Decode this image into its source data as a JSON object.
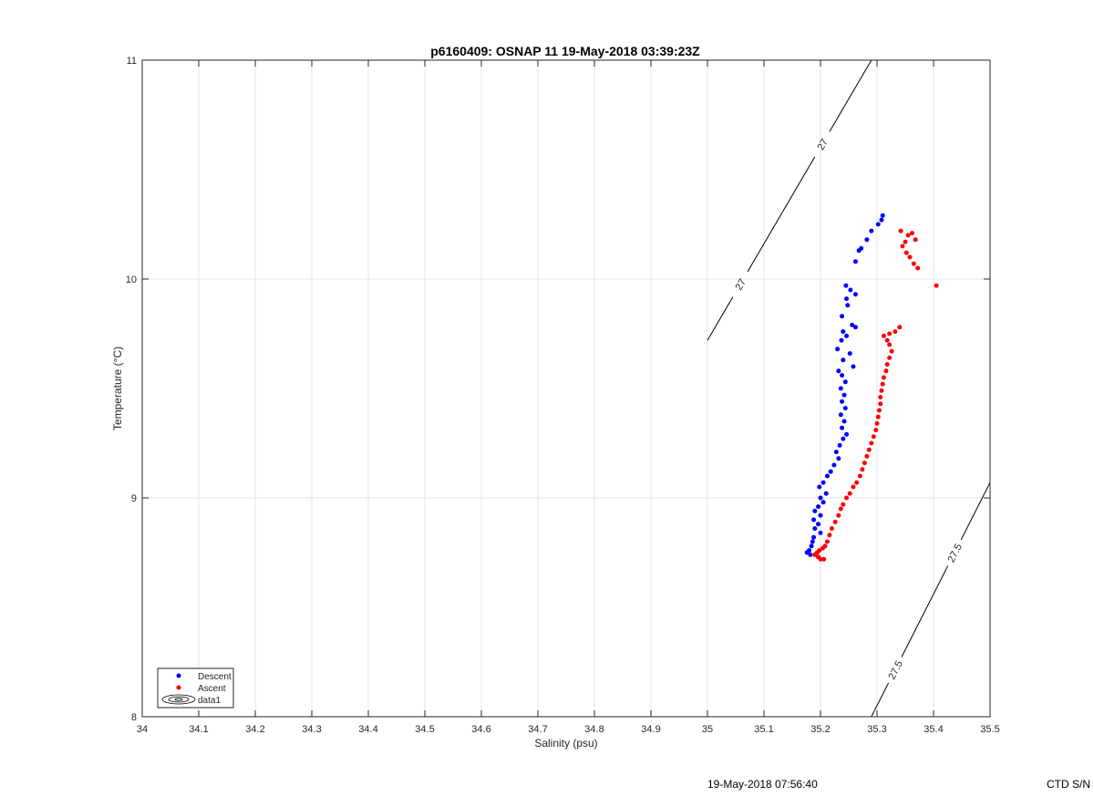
{
  "chart_data": {
    "type": "scatter",
    "title": "p6160409: OSNAP 11 19-May-2018 03:39:23Z",
    "xlabel": "Salinity (psu)",
    "ylabel": "Temperature (°C)",
    "xlim": [
      34,
      35.5
    ],
    "ylim": [
      8,
      11
    ],
    "xticks": [
      "34",
      "34.1",
      "34.2",
      "34.3",
      "34.4",
      "34.5",
      "34.6",
      "34.7",
      "34.8",
      "34.9",
      "35",
      "35.1",
      "35.2",
      "35.3",
      "35.4",
      "35.5"
    ],
    "yticks": [
      "8",
      "9",
      "10",
      "11"
    ],
    "grid": true,
    "legend_position": "bottom-left",
    "series": [
      {
        "name": "Descent",
        "color": "#0000ff",
        "marker": "dot",
        "points": [
          [
            35.31,
            10.29
          ],
          [
            35.308,
            10.27
          ],
          [
            35.302,
            10.25
          ],
          [
            35.29,
            10.22
          ],
          [
            35.282,
            10.18
          ],
          [
            35.272,
            10.14
          ],
          [
            35.268,
            10.13
          ],
          [
            35.262,
            10.08
          ],
          [
            35.245,
            9.97
          ],
          [
            35.253,
            9.95
          ],
          [
            35.262,
            9.93
          ],
          [
            35.246,
            9.91
          ],
          [
            35.248,
            9.88
          ],
          [
            35.238,
            9.83
          ],
          [
            35.256,
            9.79
          ],
          [
            35.262,
            9.78
          ],
          [
            35.24,
            9.76
          ],
          [
            35.246,
            9.74
          ],
          [
            35.237,
            9.72
          ],
          [
            35.23,
            9.68
          ],
          [
            35.252,
            9.66
          ],
          [
            35.24,
            9.63
          ],
          [
            35.258,
            9.6
          ],
          [
            35.232,
            9.58
          ],
          [
            35.238,
            9.56
          ],
          [
            35.244,
            9.53
          ],
          [
            35.236,
            9.5
          ],
          [
            35.242,
            9.47
          ],
          [
            35.238,
            9.44
          ],
          [
            35.244,
            9.41
          ],
          [
            35.236,
            9.38
          ],
          [
            35.242,
            9.35
          ],
          [
            35.238,
            9.32
          ],
          [
            35.246,
            9.29
          ],
          [
            35.24,
            9.27
          ],
          [
            35.234,
            9.24
          ],
          [
            35.228,
            9.21
          ],
          [
            35.232,
            9.18
          ],
          [
            35.224,
            9.15
          ],
          [
            35.218,
            9.12
          ],
          [
            35.212,
            9.1
          ],
          [
            35.205,
            9.07
          ],
          [
            35.198,
            9.05
          ],
          [
            35.21,
            9.02
          ],
          [
            35.2,
            9.0
          ],
          [
            35.205,
            8.98
          ],
          [
            35.196,
            8.96
          ],
          [
            35.19,
            8.94
          ],
          [
            35.2,
            8.92
          ],
          [
            35.188,
            8.9
          ],
          [
            35.196,
            8.88
          ],
          [
            35.19,
            8.86
          ],
          [
            35.2,
            8.84
          ],
          [
            35.188,
            8.82
          ],
          [
            35.186,
            8.8
          ],
          [
            35.184,
            8.78
          ],
          [
            35.18,
            8.76
          ],
          [
            35.176,
            8.75
          ],
          [
            35.182,
            8.74
          ]
        ]
      },
      {
        "name": "Ascent",
        "color": "#ff0000",
        "marker": "dot",
        "points": [
          [
            35.405,
            9.97
          ],
          [
            35.372,
            10.05
          ],
          [
            35.365,
            10.07
          ],
          [
            35.358,
            10.1
          ],
          [
            35.352,
            10.12
          ],
          [
            35.345,
            10.15
          ],
          [
            35.35,
            10.17
          ],
          [
            35.355,
            10.2
          ],
          [
            35.362,
            10.21
          ],
          [
            35.368,
            10.18
          ],
          [
            35.342,
            10.22
          ],
          [
            35.34,
            9.78
          ],
          [
            35.332,
            9.76
          ],
          [
            35.322,
            9.75
          ],
          [
            35.312,
            9.74
          ],
          [
            35.318,
            9.72
          ],
          [
            35.322,
            9.7
          ],
          [
            35.326,
            9.67
          ],
          [
            35.322,
            9.64
          ],
          [
            35.318,
            9.61
          ],
          [
            35.316,
            9.58
          ],
          [
            35.312,
            9.55
          ],
          [
            35.31,
            9.52
          ],
          [
            35.308,
            9.49
          ],
          [
            35.306,
            9.46
          ],
          [
            35.306,
            9.43
          ],
          [
            35.304,
            9.4
          ],
          [
            35.302,
            9.37
          ],
          [
            35.3,
            9.34
          ],
          [
            35.298,
            9.31
          ],
          [
            35.294,
            9.28
          ],
          [
            35.29,
            9.25
          ],
          [
            35.286,
            9.22
          ],
          [
            35.282,
            9.19
          ],
          [
            35.278,
            9.16
          ],
          [
            35.274,
            9.13
          ],
          [
            35.27,
            9.1
          ],
          [
            35.264,
            9.07
          ],
          [
            35.258,
            9.05
          ],
          [
            35.252,
            9.02
          ],
          [
            35.246,
            9.0
          ],
          [
            35.24,
            8.97
          ],
          [
            35.236,
            8.95
          ],
          [
            35.232,
            8.92
          ],
          [
            35.226,
            8.89
          ],
          [
            35.22,
            8.86
          ],
          [
            35.216,
            8.83
          ],
          [
            35.212,
            8.8
          ],
          [
            35.208,
            8.78
          ],
          [
            35.204,
            8.77
          ],
          [
            35.198,
            8.76
          ],
          [
            35.194,
            8.75
          ],
          [
            35.19,
            8.74
          ],
          [
            35.196,
            8.73
          ],
          [
            35.2,
            8.72
          ],
          [
            35.206,
            8.72
          ]
        ]
      }
    ],
    "contours": [
      {
        "level": "27",
        "labels": [
          "27",
          "27"
        ],
        "points": [
          [
            35.0,
            9.72
          ],
          [
            35.29,
            11.0
          ]
        ]
      },
      {
        "level": "27.5",
        "labels": [
          "27.5",
          "27.5"
        ],
        "points": [
          [
            35.29,
            8.0
          ],
          [
            35.5,
            9.07
          ]
        ]
      }
    ],
    "legend": [
      "Descent",
      "Ascent",
      "data1"
    ]
  },
  "footer": {
    "timestamp": "19-May-2018 07:56:40",
    "serial": "CTD S/N"
  }
}
